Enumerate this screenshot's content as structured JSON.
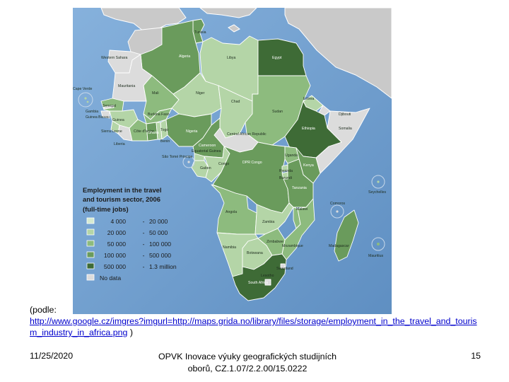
{
  "map": {
    "legend": {
      "title_lines": [
        "Employment in the travel",
        "and tourism sector, 2006",
        "(full-time jobs)"
      ],
      "items": [
        {
          "from": "4 000",
          "to": "20 000",
          "color": "#d6ead0"
        },
        {
          "from": "20 000",
          "to": "50 000",
          "color": "#b4d5a7"
        },
        {
          "from": "50 000",
          "to": "100 000",
          "color": "#8dbb7e"
        },
        {
          "from": "100 000",
          "to": "500 000",
          "color": "#6a9b5c"
        },
        {
          "from": "500 000",
          "to": "1.3 million",
          "color": "#3e6b36"
        }
      ],
      "no_data_label": "No data",
      "no_data_color": "#dcdcdc",
      "dash": "-"
    },
    "colors": {
      "ocean": "#6f9fce",
      "land_other": "#c9c9c9",
      "border": "#ffffff"
    },
    "countries": [
      {
        "name": "Tunisia",
        "cls": 3
      },
      {
        "name": "Western Sahara",
        "cls": 0
      },
      {
        "name": "Algeria",
        "cls": 3
      },
      {
        "name": "Libya",
        "cls": 1
      },
      {
        "name": "Egypt",
        "cls": 4
      },
      {
        "name": "Mauritania",
        "cls": 0
      },
      {
        "name": "Cape Verde",
        "cls": 1
      },
      {
        "name": "Mali",
        "cls": 2
      },
      {
        "name": "Niger",
        "cls": 1
      },
      {
        "name": "Chad",
        "cls": 1
      },
      {
        "name": "Sudan",
        "cls": 2
      },
      {
        "name": "Eritrea",
        "cls": 1
      },
      {
        "name": "Senegal",
        "cls": 2
      },
      {
        "name": "Gambia",
        "cls": 0
      },
      {
        "name": "Guinea-Bissau",
        "cls": 0
      },
      {
        "name": "Guinea",
        "cls": 1
      },
      {
        "name": "Burkina Faso",
        "cls": 2
      },
      {
        "name": "Sierra Leone",
        "cls": 1
      },
      {
        "name": "Liberia",
        "cls": 0
      },
      {
        "name": "Côte d'Ivoire",
        "cls": 2
      },
      {
        "name": "Ghana",
        "cls": 3
      },
      {
        "name": "Togo",
        "cls": 1
      },
      {
        "name": "Benin",
        "cls": 1
      },
      {
        "name": "Nigeria",
        "cls": 3
      },
      {
        "name": "Cameroon",
        "cls": 3
      },
      {
        "name": "Central African Republic",
        "cls": 0
      },
      {
        "name": "Ethiopia",
        "cls": 4
      },
      {
        "name": "Djibouti",
        "cls": 0
      },
      {
        "name": "Somalia",
        "cls": 0
      },
      {
        "name": "Equatorial Guinea",
        "cls": 1
      },
      {
        "name": "Sao Tome and Principe",
        "cls": 0
      },
      {
        "name": "Gabon",
        "cls": 1
      },
      {
        "name": "Congo",
        "cls": 1
      },
      {
        "name": "DPR Congo",
        "cls": 3
      },
      {
        "name": "Uganda",
        "cls": 2
      },
      {
        "name": "Kenya",
        "cls": 3
      },
      {
        "name": "Rwanda",
        "cls": 1
      },
      {
        "name": "Burundi",
        "cls": 1
      },
      {
        "name": "Tanzania",
        "cls": 3
      },
      {
        "name": "Angola",
        "cls": 2
      },
      {
        "name": "Zambia",
        "cls": 1
      },
      {
        "name": "Malawi",
        "cls": 2
      },
      {
        "name": "Mozambique",
        "cls": 2
      },
      {
        "name": "Namibia",
        "cls": 1
      },
      {
        "name": "Botswana",
        "cls": 1
      },
      {
        "name": "Zimbabwe",
        "cls": 2
      },
      {
        "name": "South Africa",
        "cls": 4
      },
      {
        "name": "Swaziland",
        "cls": 0
      },
      {
        "name": "Lesotho",
        "cls": 0
      },
      {
        "name": "Madagascar",
        "cls": 3
      },
      {
        "name": "Comoros",
        "cls": 0
      },
      {
        "name": "Seychelles",
        "cls": 1
      },
      {
        "name": "Mauritius",
        "cls": 2
      }
    ],
    "labels": {
      "tunisia": "Tunisia",
      "western_sahara": "Western Sahara",
      "algeria": "Algeria",
      "libya": "Libya",
      "egypt": "Egypt",
      "mauritania": "Mauritania",
      "cape_verde": "Cape Verde",
      "mali": "Mali",
      "niger": "Niger",
      "chad": "Chad",
      "sudan": "Sudan",
      "eritrea": "Eritrea",
      "djibouti": "Djibouti",
      "ethiopia": "Ethiopia",
      "somalia": "Somalia",
      "senegal": "Senegal",
      "gambia": "Gambia",
      "guinea_bissau": "Guinea Bissau",
      "guinea": "Guinea",
      "burkina": "Burkina Faso",
      "sierra": "Sierra Leone",
      "liberia": "Liberia",
      "cote": "Côte d'Ivoire",
      "ghana": "Ghana",
      "togo": "Togo",
      "benin": "Benin",
      "nigeria": "Nigeria",
      "cameroon": "Cameroon",
      "car": "Central African Republic",
      "eq_guinea": "Equatorial Guinea",
      "sao_tome": "São Tomé Principe",
      "gabon": "Gabon",
      "congo": "Congo",
      "drc": "DPR Congo",
      "uganda": "Uganda",
      "kenya": "Kenya",
      "rwanda": "Rwanda",
      "burundi": "Burundi",
      "tanzania": "Tanzania",
      "seychelles": "Seychelles",
      "comoros": "Comoros",
      "angola": "Angola",
      "zambia": "Zambia",
      "malawi": "Malawi",
      "mozambique": "Mozambique",
      "madagascar": "Madagascar",
      "mauritius": "Mauritius",
      "namibia": "Namibia",
      "botswana": "Botswana",
      "zimbabwe": "Zimbabwe",
      "swaziland": "Swaziland",
      "lesotho": "Lesotho",
      "south_africa": "South Africa"
    }
  },
  "caption": {
    "prefix": "(podle:",
    "url": "http://www.google.cz/imgres?imgurl=http://maps.grida.no/library/files/storage/employment_in_the_travel_and_tourism_industry_in_africa.png",
    "suffix": ")"
  },
  "footer": {
    "date": "11/25/2020",
    "title_line1": "OPVK Inovace výuky geografických studijních",
    "title_line2": "oborů, CZ.1.07/2.2.00/15.0222",
    "page": "15"
  }
}
